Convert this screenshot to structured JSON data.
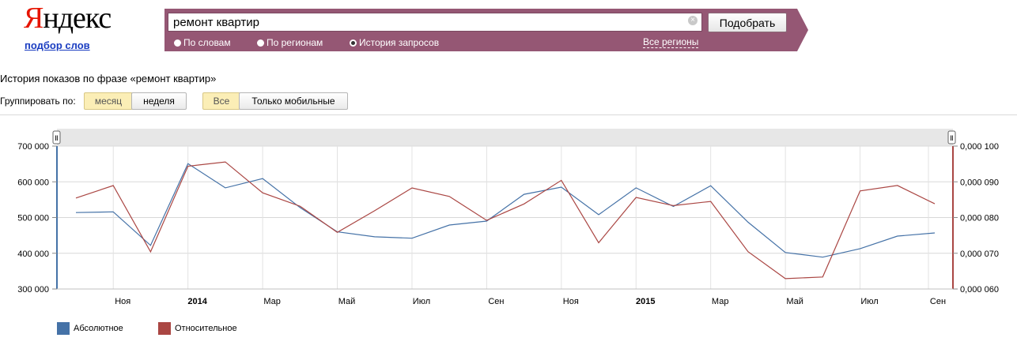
{
  "logo": {
    "first": "Я",
    "rest": "ндекс",
    "sub": "подбор слов"
  },
  "search": {
    "query": "ремонт квартир",
    "button": "Подобрать",
    "options": [
      "По словам",
      "По регионам",
      "История запросов"
    ],
    "selected_option": "История запросов",
    "regions_link": "Все регионы"
  },
  "history_title": "История показов по фразе «ремонт квартир»",
  "grouping": {
    "label": "Группировать по:",
    "options": [
      "месяц",
      "неделя"
    ],
    "selected": "месяц",
    "device_options": [
      "Все",
      "Только мобильные"
    ],
    "device_selected": "Все"
  },
  "colors": {
    "absolute": "#4572a7",
    "relative": "#aa4643",
    "accent": "#955774"
  },
  "chart_data": {
    "type": "line",
    "x": [
      "2013-10",
      "2013-11",
      "2013-12",
      "2014-01",
      "2014-02",
      "2014-03",
      "2014-04",
      "2014-05",
      "2014-06",
      "2014-07",
      "2014-08",
      "2014-09",
      "2014-10",
      "2014-11",
      "2014-12",
      "2015-01",
      "2015-02",
      "2015-03",
      "2015-04",
      "2015-05",
      "2015-06",
      "2015-07",
      "2015-08",
      "2015-09"
    ],
    "x_tick_labels": [
      "Ноя",
      "2014",
      "Мар",
      "Май",
      "Июл",
      "Сен",
      "Ноя",
      "2015",
      "Мар",
      "Май",
      "Июл",
      "Сен"
    ],
    "series": [
      {
        "name": "Абсолютное",
        "axis": "left",
        "values": [
          514000,
          516000,
          422000,
          651000,
          583000,
          609000,
          528000,
          460000,
          446000,
          442000,
          479000,
          490000,
          565000,
          585000,
          508000,
          583000,
          531000,
          589000,
          487000,
          402000,
          389000,
          413000,
          448000,
          457000
        ]
      },
      {
        "name": "Относительное",
        "axis": "right",
        "values": [
          0.08545,
          0.08894,
          0.0704,
          0.09436,
          0.09556,
          0.08691,
          0.08318,
          0.07585,
          0.08191,
          0.08829,
          0.0859,
          0.0792,
          0.0838,
          0.09041,
          0.07296,
          0.08562,
          0.08334,
          0.0845,
          0.07045,
          0.06289,
          0.06336,
          0.08745,
          0.08897,
          0.08385
        ]
      }
    ],
    "y_left": {
      "ylim": [
        300000,
        700000
      ],
      "ticks": [
        300000,
        400000,
        500000,
        600000,
        700000
      ],
      "tick_labels": [
        "300 000",
        "400 000",
        "500 000",
        "600 000",
        "700 000"
      ]
    },
    "y_right": {
      "ylim": [
        0.06,
        0.1
      ],
      "ticks": [
        0.06,
        0.07,
        0.08,
        0.09,
        0.1
      ],
      "tick_labels": [
        "0,000 060",
        "0,000 070",
        "0,000 080",
        "0,000 090",
        "0,000 100"
      ]
    },
    "legend_position": "bottom-left",
    "grid": true
  }
}
